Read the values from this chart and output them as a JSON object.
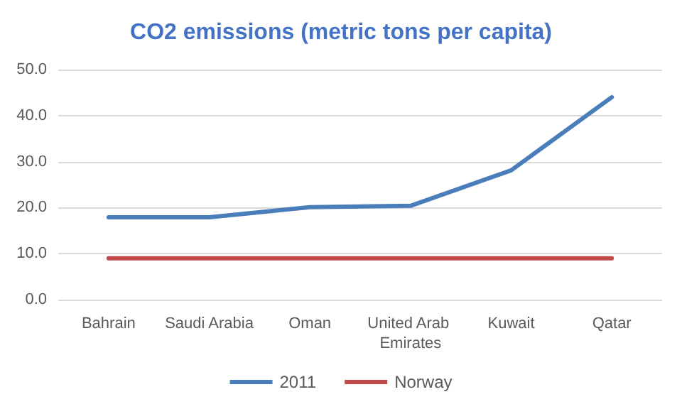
{
  "chart_data": {
    "type": "line",
    "title": "CO2 emissions (metric tons per capita)",
    "categories": [
      "Bahrain",
      "Saudi Arabia",
      "Oman",
      "United Arab Emirates",
      "Kuwait",
      "Qatar"
    ],
    "series": [
      {
        "name": "2011",
        "color": "#4a7ebb",
        "values": [
          17.9,
          17.9,
          20.1,
          20.4,
          28.1,
          44.0
        ]
      },
      {
        "name": "Norway",
        "color": "#be4b48",
        "values": [
          9.0,
          9.0,
          9.0,
          9.0,
          9.0,
          9.0
        ]
      }
    ],
    "ylim": [
      0,
      50
    ],
    "yticks": [
      {
        "value": 0,
        "label": "0.0"
      },
      {
        "value": 10,
        "label": "10.0"
      },
      {
        "value": 20,
        "label": "20.0"
      },
      {
        "value": 30,
        "label": "30.0"
      },
      {
        "value": 40,
        "label": "40.0"
      },
      {
        "value": 50,
        "label": "50.0"
      }
    ],
    "grid": "y",
    "legend": "bottom",
    "marker": "none",
    "line_style": "solid"
  }
}
